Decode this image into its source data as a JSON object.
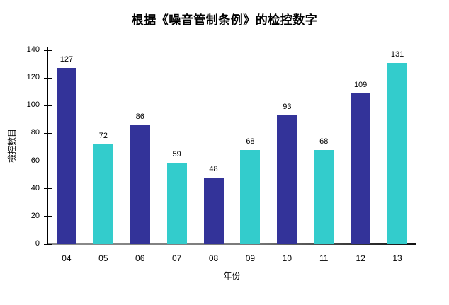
{
  "title": "根据《噪音管制条例》的检控数字",
  "colors": {
    "bar_primary": "#333399",
    "bar_secondary": "#33CCCC",
    "axis": "#000000",
    "baseline_gray": "#808080",
    "baseline_black": "#111111",
    "background": "#FFFFFF",
    "text": "#000000"
  },
  "chart_data": {
    "type": "bar",
    "title": "根据《噪音管制条例》的检控数字",
    "categories": [
      "04",
      "05",
      "06",
      "07",
      "08",
      "09",
      "10",
      "11",
      "12",
      "13"
    ],
    "values": [
      127,
      72,
      86,
      59,
      48,
      68,
      93,
      68,
      109,
      131
    ],
    "bar_colors_alternate": [
      "#333399",
      "#33CCCC"
    ],
    "xlabel": "年份",
    "ylabel": "檢控數目",
    "ylim": [
      0,
      140
    ],
    "yticks": [
      0,
      20,
      40,
      60,
      80,
      100,
      120,
      140
    ],
    "data_labels": true,
    "grid": false,
    "legend": false
  }
}
